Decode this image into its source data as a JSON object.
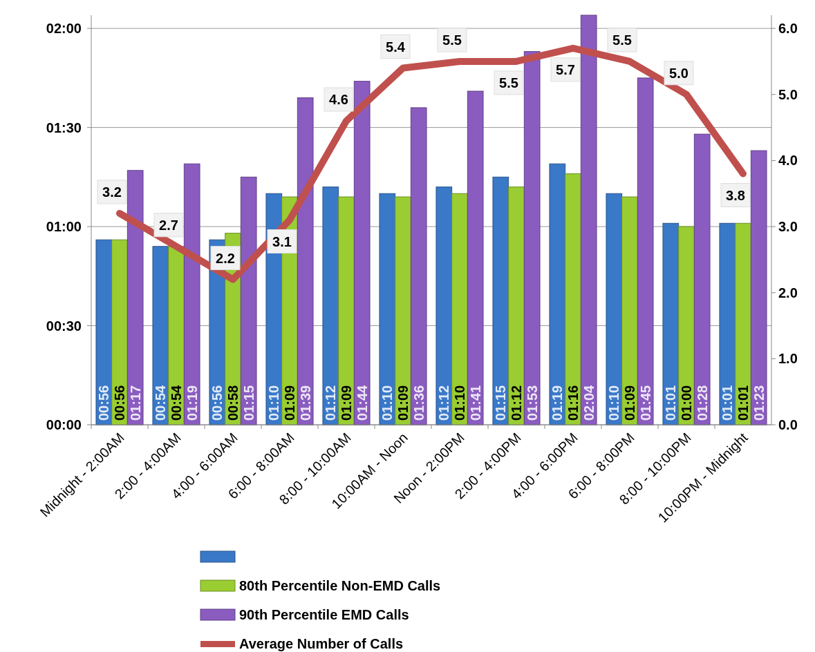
{
  "chart_data": {
    "type": "bar",
    "categories": [
      "Midnight - 2:00AM",
      "2:00 - 4:00AM",
      "4:00 - 6:00AM",
      "6:00 - 8:00AM",
      "8:00 - 10:00AM",
      "10:00AM - Noon",
      "Noon - 2:00PM",
      "2:00 - 4:00PM",
      "4:00 - 6:00PM",
      "6:00 - 8:00PM",
      "8:00 - 10:00PM",
      "10:00PM - Midnight"
    ],
    "series": [
      {
        "color": "#3a78c8",
        "values": [
          56,
          54,
          56,
          70,
          72,
          70,
          72,
          75,
          79,
          70,
          61,
          61
        ],
        "value_labels": [
          "00:56",
          "00:54",
          "00:56",
          "01:10",
          "01:12",
          "01:10",
          "01:12",
          "01:15",
          "01:19",
          "01:10",
          "01:01",
          "01:01"
        ]
      },
      {
        "name": "80th Percentile Non-EMD Calls",
        "color": "#9acd32",
        "values": [
          56,
          54,
          58,
          69,
          69,
          69,
          70,
          72,
          76,
          69,
          60,
          61
        ],
        "value_labels": [
          "00:56",
          "00:54",
          "00:58",
          "01:09",
          "01:09",
          "01:09",
          "01:10",
          "01:12",
          "01:16",
          "01:09",
          "01:00",
          "01:01"
        ]
      },
      {
        "name": "90th Percentile EMD Calls",
        "color": "#8a5cc0",
        "values": [
          77,
          79,
          75,
          99,
          104,
          96,
          101,
          113,
          124,
          105,
          88,
          83
        ],
        "value_labels": [
          "01:17",
          "01:19",
          "01:15",
          "01:39",
          "01:44",
          "01:36",
          "01:41",
          "01:53",
          "02:04",
          "01:45",
          "01:28",
          "01:23"
        ]
      },
      {
        "name": "Average Number of Calls",
        "type": "line",
        "axis": "y2",
        "color": "#c0504d",
        "values": [
          3.2,
          2.7,
          2.2,
          3.1,
          4.6,
          5.4,
          5.5,
          5.5,
          5.7,
          5.5,
          5.0,
          3.8
        ],
        "value_labels": [
          "3.2",
          "2.7",
          "2.2",
          "3.1",
          "4.6",
          "5.4",
          "5.5",
          "5.5",
          "5.7",
          "5.5",
          "5.0",
          "3.8"
        ]
      }
    ],
    "ylim": [
      0,
      124
    ],
    "yticks": [
      {
        "value": 0,
        "label": "00:00"
      },
      {
        "value": 30,
        "label": "00:30"
      },
      {
        "value": 60,
        "label": "01:00"
      },
      {
        "value": 90,
        "label": "01:30"
      },
      {
        "value": 120,
        "label": "02:00"
      }
    ],
    "y2lim": [
      0,
      6.2
    ],
    "y2ticks": [
      {
        "value": 0,
        "label": "0.0"
      },
      {
        "value": 1,
        "label": "1.0"
      },
      {
        "value": 2,
        "label": "2.0"
      },
      {
        "value": 3,
        "label": "3.0"
      },
      {
        "value": 4,
        "label": "4.0"
      },
      {
        "value": 5,
        "label": "5.0"
      },
      {
        "value": 6,
        "label": "6.0"
      }
    ],
    "grid": "y",
    "legend": "bottom",
    "line_style": "solid"
  }
}
